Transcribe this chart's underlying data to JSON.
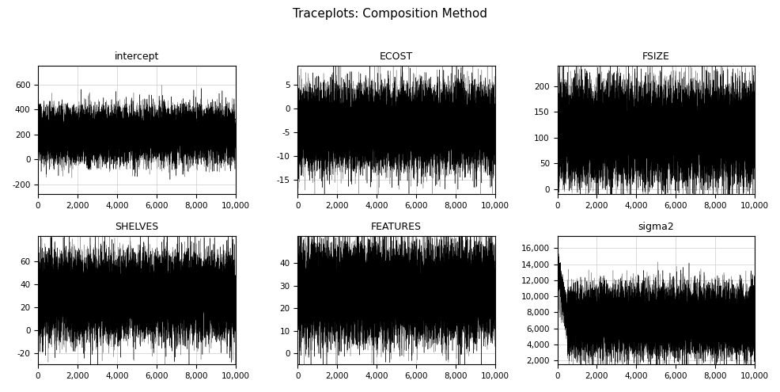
{
  "title": "Traceplots: Composition Method",
  "subplots": [
    {
      "name": "intercept",
      "mean": 200,
      "std": 100,
      "ylim": [
        -280,
        750
      ],
      "yticks": [
        -200,
        0,
        200,
        400,
        600
      ],
      "n": 10000,
      "seed": 10
    },
    {
      "name": "ECOST",
      "mean": -4,
      "std": 4,
      "ylim": [
        -18,
        9
      ],
      "yticks": [
        -15,
        -10,
        -5,
        0,
        5
      ],
      "n": 10000,
      "seed": 20
    },
    {
      "name": "FSIZE",
      "mean": 110,
      "std": 45,
      "ylim": [
        -10,
        240
      ],
      "yticks": [
        0,
        50,
        100,
        150,
        200
      ],
      "n": 10000,
      "seed": 30
    },
    {
      "name": "SHELVES",
      "mean": 30,
      "std": 17,
      "ylim": [
        -30,
        82
      ],
      "yticks": [
        -20,
        0,
        20,
        40,
        60
      ],
      "n": 10000,
      "seed": 40
    },
    {
      "name": "FEATURES",
      "mean": 27,
      "std": 10,
      "ylim": [
        -5,
        52
      ],
      "yticks": [
        0,
        10,
        20,
        30,
        40
      ],
      "n": 10000,
      "seed": 50
    },
    {
      "name": "sigma2",
      "mean": 7000,
      "std": 2000,
      "ylim": [
        1500,
        17500
      ],
      "yticks": [
        2000,
        4000,
        6000,
        8000,
        10000,
        12000,
        14000,
        16000
      ],
      "n": 10000,
      "seed": 60
    }
  ],
  "xticks": [
    0,
    2000,
    4000,
    6000,
    8000,
    10000
  ],
  "xlim": [
    0,
    10000
  ],
  "line_color": "black",
  "line_color2": "#888888",
  "line_width": 0.3,
  "grid_color": "#cccccc",
  "bg_color": "white",
  "title_fontsize": 11,
  "subplot_title_fontsize": 9,
  "tick_fontsize": 7.5
}
